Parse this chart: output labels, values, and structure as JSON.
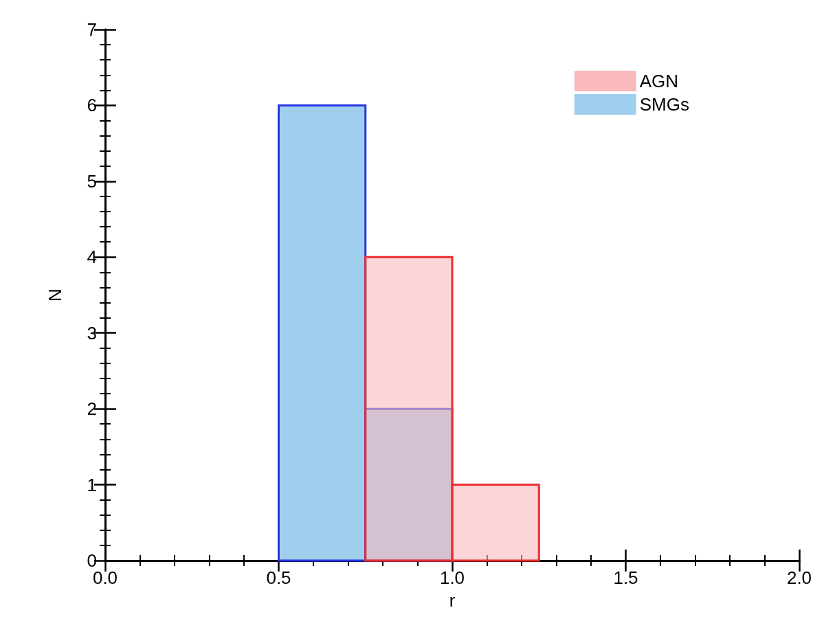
{
  "chart_data": {
    "type": "histogram",
    "xlabel": "r",
    "ylabel": "N",
    "bins": [
      0.5,
      0.75,
      1.0,
      1.25
    ],
    "series": [
      {
        "name": "AGN",
        "color": "#f9b9bd",
        "values": [
          0,
          4,
          1
        ]
      },
      {
        "name": "SMGs",
        "color": "#a0cfee",
        "values": [
          6,
          2,
          0
        ]
      }
    ],
    "xlim": [
      0,
      2
    ],
    "xticks": [
      {
        "value": 0,
        "label": "0.0"
      },
      {
        "value": 0.5,
        "label": "0.5"
      },
      {
        "value": 1,
        "label": "1.0"
      },
      {
        "value": 1.5,
        "label": "1.5"
      },
      {
        "value": 2,
        "label": "2.0"
      }
    ],
    "ylim": [
      0,
      7
    ],
    "yticks": [
      0,
      1,
      2,
      3,
      4,
      5,
      6,
      7
    ],
    "grid": false,
    "legend": "top right"
  }
}
